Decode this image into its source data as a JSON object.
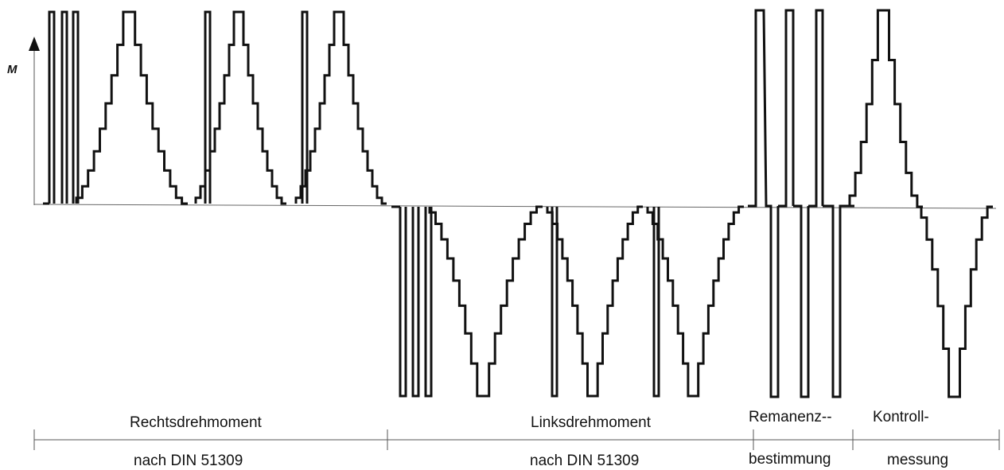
{
  "axis": {
    "label": "M"
  },
  "sections": [
    {
      "top": "Rechtsdrehmoment",
      "bottom": "nach DIN 51309"
    },
    {
      "top": "Linksdrehmoment",
      "bottom": "nach DIN 51309"
    },
    {
      "top": "Remanenz--",
      "bottom": "bestimmung"
    },
    {
      "top": "Kontroll-",
      "bottom": "messung"
    }
  ],
  "colors": {
    "signal": "#111111",
    "baseline": "#666666",
    "axis": "#555555"
  }
}
